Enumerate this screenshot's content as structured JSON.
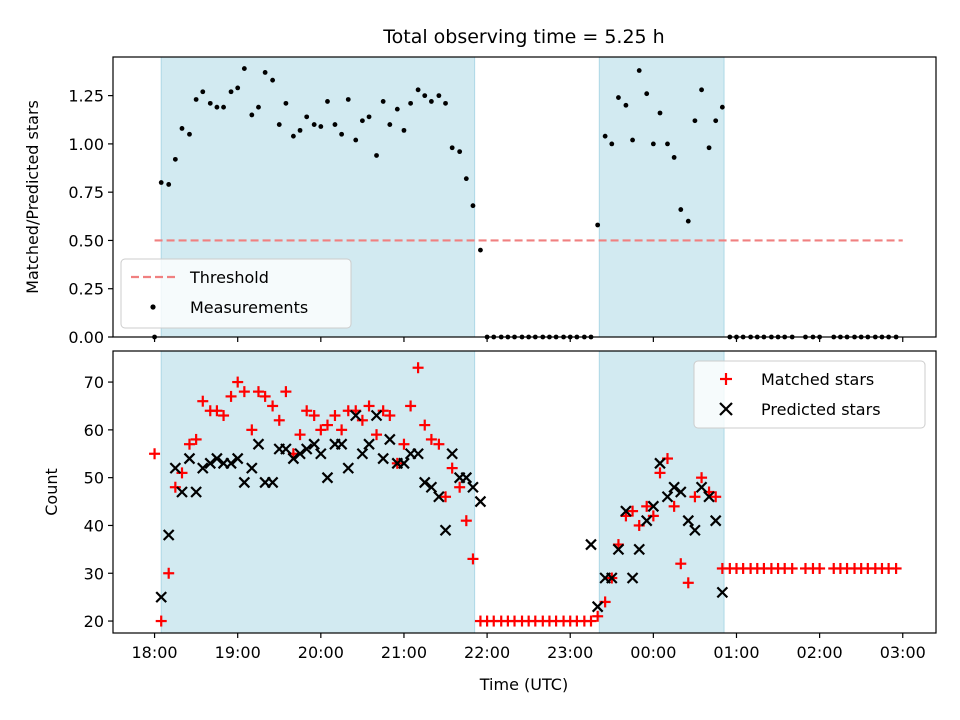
{
  "figure": {
    "title": "Total observing time = 5.25 h",
    "xlabel": "Time (UTC)"
  },
  "chart_data": [
    {
      "type": "scatter",
      "panel": "top",
      "ylabel": "Matched/Predicted stars",
      "ylim": [
        0,
        1.45
      ],
      "xlim_hours_from_18": [
        -0.5,
        9.4
      ],
      "yticks": [
        "0.00",
        "0.25",
        "0.50",
        "0.75",
        "1.00",
        "1.25"
      ],
      "ytick_values": [
        0,
        0.25,
        0.5,
        0.75,
        1.0,
        1.25
      ],
      "observing_windows_hours_from_18": [
        [
          0.08,
          3.85
        ],
        [
          5.35,
          6.85
        ]
      ],
      "threshold": {
        "name": "Threshold",
        "value": 0.5,
        "x_range_hours_from_18": [
          0,
          9.0
        ],
        "color": "#f08080",
        "style": "dashed"
      },
      "series": [
        {
          "name": "Measurements",
          "color": "#000000",
          "marker": "dot",
          "x": [
            0.0,
            0.08,
            0.17,
            0.25,
            0.33,
            0.42,
            0.5,
            0.58,
            0.67,
            0.75,
            0.83,
            0.92,
            1.0,
            1.08,
            1.17,
            1.25,
            1.33,
            1.42,
            1.5,
            1.58,
            1.67,
            1.75,
            1.83,
            1.92,
            2.0,
            2.08,
            2.17,
            2.25,
            2.33,
            2.42,
            2.5,
            2.58,
            2.67,
            2.75,
            2.83,
            2.92,
            3.0,
            3.08,
            3.17,
            3.25,
            3.33,
            3.42,
            3.5,
            3.58,
            3.67,
            3.75,
            3.83,
            3.92,
            4.0,
            4.08,
            4.17,
            4.25,
            4.33,
            4.42,
            4.5,
            4.58,
            4.67,
            4.75,
            4.83,
            4.92,
            5.0,
            5.08,
            5.17,
            5.25,
            5.33,
            5.42,
            5.5,
            5.58,
            5.67,
            5.75,
            5.83,
            5.92,
            6.0,
            6.08,
            6.17,
            6.25,
            6.33,
            6.42,
            6.5,
            6.58,
            6.67,
            6.75,
            6.83,
            6.92,
            7.0,
            7.08,
            7.17,
            7.25,
            7.33,
            7.42,
            7.5,
            7.58,
            7.67,
            7.83,
            7.92,
            8.0,
            8.17,
            8.25,
            8.33,
            8.42,
            8.5,
            8.58,
            8.67,
            8.75,
            8.83,
            8.92
          ],
          "y": [
            0.0,
            0.8,
            0.79,
            0.92,
            1.08,
            1.05,
            1.23,
            1.27,
            1.21,
            1.19,
            1.19,
            1.27,
            1.29,
            1.39,
            1.15,
            1.19,
            1.37,
            1.33,
            1.1,
            1.21,
            1.04,
            1.07,
            1.14,
            1.1,
            1.09,
            1.22,
            1.1,
            1.05,
            1.23,
            1.02,
            1.12,
            1.14,
            0.94,
            1.22,
            1.1,
            1.18,
            1.07,
            1.21,
            1.28,
            1.25,
            1.22,
            1.25,
            1.21,
            0.98,
            0.96,
            0.82,
            0.68,
            0.45,
            0.0,
            0.0,
            0.0,
            0.0,
            0.0,
            0.0,
            0.0,
            0.0,
            0.0,
            0.0,
            0.0,
            0.0,
            0.0,
            0.0,
            0.0,
            0.0,
            0.58,
            1.04,
            1.0,
            1.24,
            1.2,
            1.02,
            1.38,
            1.26,
            1.0,
            1.16,
            1.0,
            0.93,
            0.66,
            0.6,
            1.12,
            1.28,
            0.98,
            1.12,
            1.19,
            0.0,
            0.0,
            0.0,
            0.0,
            0.0,
            0.0,
            0.0,
            0.0,
            0.0,
            0.0,
            0.0,
            0.0,
            0.0,
            0.0,
            0.0,
            0.0,
            0.0,
            0.0,
            0.0,
            0.0,
            0.0,
            0.0,
            0.0
          ]
        }
      ],
      "legend": {
        "position": "lower-left",
        "entries": [
          "Threshold",
          "Measurements"
        ]
      }
    },
    {
      "type": "scatter",
      "panel": "bottom",
      "ylabel": "Count",
      "ylim": [
        17.5,
        76.5
      ],
      "xlim_hours_from_18": [
        -0.5,
        9.4
      ],
      "yticks": [
        "20",
        "30",
        "40",
        "50",
        "60",
        "70"
      ],
      "ytick_values": [
        20,
        30,
        40,
        50,
        60,
        70
      ],
      "xticks": [
        "18:00",
        "19:00",
        "20:00",
        "21:00",
        "22:00",
        "23:00",
        "00:00",
        "01:00",
        "02:00",
        "03:00"
      ],
      "xtick_values": [
        0,
        1,
        2,
        3,
        4,
        5,
        6,
        7,
        8,
        9
      ],
      "observing_windows_hours_from_18": [
        [
          0.08,
          3.85
        ],
        [
          5.35,
          6.85
        ]
      ],
      "series": [
        {
          "name": "Matched stars",
          "color": "#ff0000",
          "marker": "plus",
          "x": [
            0.0,
            0.08,
            0.17,
            0.25,
            0.33,
            0.42,
            0.5,
            0.58,
            0.67,
            0.75,
            0.83,
            0.92,
            1.0,
            1.08,
            1.17,
            1.25,
            1.33,
            1.42,
            1.5,
            1.58,
            1.67,
            1.75,
            1.83,
            1.92,
            2.0,
            2.08,
            2.17,
            2.25,
            2.33,
            2.42,
            2.5,
            2.58,
            2.67,
            2.75,
            2.83,
            2.92,
            3.0,
            3.08,
            3.17,
            3.25,
            3.33,
            3.42,
            3.5,
            3.58,
            3.67,
            3.75,
            3.83,
            3.92,
            4.0,
            4.08,
            4.17,
            4.25,
            4.33,
            4.42,
            4.5,
            4.58,
            4.67,
            4.75,
            4.83,
            4.92,
            5.0,
            5.08,
            5.17,
            5.25,
            5.33,
            5.42,
            5.5,
            5.58,
            5.67,
            5.75,
            5.83,
            5.92,
            6.0,
            6.08,
            6.17,
            6.25,
            6.33,
            6.42,
            6.5,
            6.58,
            6.67,
            6.75,
            6.83,
            6.92,
            7.0,
            7.08,
            7.17,
            7.25,
            7.33,
            7.42,
            7.5,
            7.58,
            7.67,
            7.83,
            7.92,
            8.0,
            8.17,
            8.25,
            8.33,
            8.42,
            8.5,
            8.58,
            8.67,
            8.75,
            8.83,
            8.92
          ],
          "y": [
            55,
            20,
            30,
            48,
            51,
            57,
            58,
            66,
            64,
            64,
            63,
            67,
            70,
            68,
            60,
            68,
            67,
            65,
            62,
            68,
            55,
            59,
            64,
            63,
            60,
            61,
            63,
            60,
            64,
            64,
            62,
            65,
            59,
            64,
            63,
            53,
            57,
            65,
            73,
            61,
            58,
            57,
            46,
            52,
            48,
            41,
            33,
            20,
            20,
            20,
            20,
            20,
            20,
            20,
            20,
            20,
            20,
            20,
            20,
            20,
            20,
            20,
            20,
            20,
            21,
            24,
            29,
            36,
            42,
            43,
            40,
            44,
            42,
            51,
            54,
            44,
            32,
            28,
            46,
            50,
            47,
            46,
            31,
            31,
            31,
            31,
            31,
            31,
            31,
            31,
            31,
            31,
            31,
            31,
            31,
            31,
            31,
            31,
            31,
            31,
            31,
            31,
            31,
            31,
            31,
            31
          ]
        },
        {
          "name": "Predicted stars",
          "color": "#000000",
          "marker": "x",
          "x": [
            0.08,
            0.17,
            0.25,
            0.33,
            0.42,
            0.5,
            0.58,
            0.67,
            0.75,
            0.83,
            0.92,
            1.0,
            1.08,
            1.17,
            1.25,
            1.33,
            1.42,
            1.5,
            1.58,
            1.67,
            1.75,
            1.83,
            1.92,
            2.0,
            2.08,
            2.17,
            2.25,
            2.33,
            2.42,
            2.5,
            2.58,
            2.67,
            2.75,
            2.83,
            2.92,
            3.0,
            3.08,
            3.17,
            3.25,
            3.33,
            3.42,
            3.5,
            3.58,
            3.67,
            3.75,
            3.83,
            3.92,
            5.25,
            5.33,
            5.42,
            5.5,
            5.58,
            5.67,
            5.75,
            5.83,
            5.92,
            6.0,
            6.08,
            6.17,
            6.25,
            6.33,
            6.42,
            6.5,
            6.58,
            6.67,
            6.75,
            6.83
          ],
          "y": [
            25,
            38,
            52,
            47,
            54,
            47,
            52,
            53,
            54,
            53,
            53,
            54,
            49,
            52,
            57,
            49,
            49,
            56,
            56,
            54,
            55,
            56,
            57,
            55,
            50,
            57,
            57,
            52,
            63,
            55,
            57,
            63,
            54,
            58,
            53,
            53,
            55,
            55,
            49,
            48,
            46,
            39,
            55,
            50,
            50,
            48,
            45,
            36,
            23,
            29,
            29,
            35,
            43,
            29,
            35,
            41,
            44,
            53,
            46,
            48,
            47,
            41,
            39,
            48,
            46,
            41,
            26
          ]
        }
      ],
      "legend": {
        "position": "upper-right",
        "entries": [
          "Matched stars",
          "Predicted stars"
        ]
      }
    }
  ],
  "colors": {
    "observing_window": "#add8e6",
    "threshold_line": "#f08080",
    "matched": "#ff0000",
    "predicted": "#000000"
  }
}
